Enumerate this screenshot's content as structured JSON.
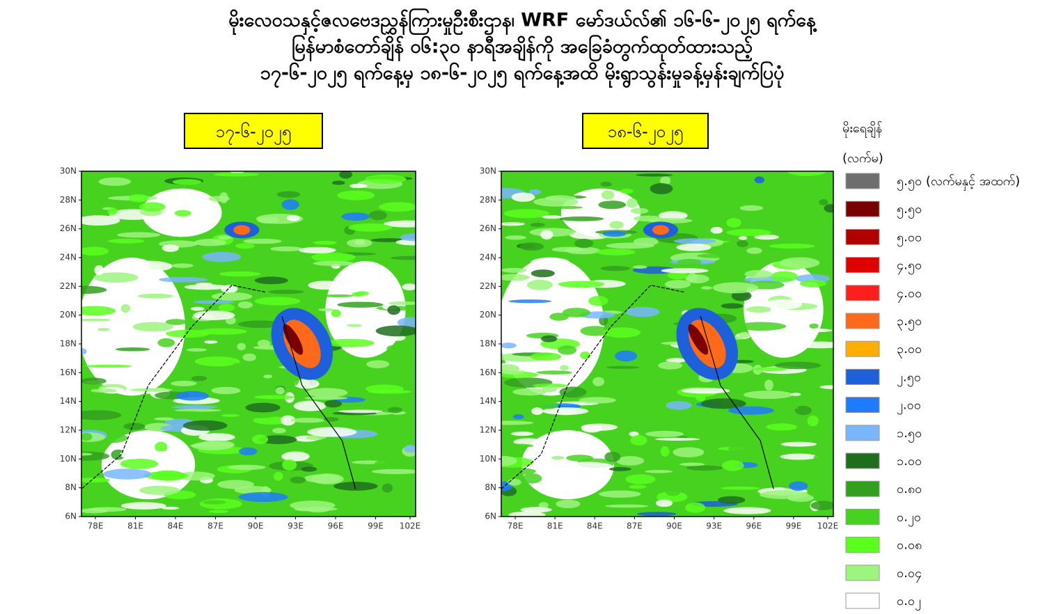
{
  "title": [
    "မိုးလေဝသနှင့်ဇလဗေဒညွှန်ကြားမှုဦးစီးဌာန၊ WRF မော်ဒယ်လ်၏ ၁၆-၆-၂၀၂၅ ရက်နေ့",
    "မြန်မာစံတော်ချိန် ၀၆:၃၀ နာရီအချိန်ကို အခြေခံတွက်ထုတ်ထားသည့်",
    "၁၇-၆-၂၀၂၅ ရက်နေ့မှ ၁၈-၆-၂၀၂၅ ရက်နေ့အထိ မိုးရွာသွန်းမှုခန့်မှန်းချက်ပြပုံ"
  ],
  "panels": [
    {
      "date": "၁၇-၆-၂၀၂၅"
    },
    {
      "date": "၁၈-၆-၂၀၂၅"
    }
  ],
  "y_ticks": [
    "30N",
    "28N",
    "26N",
    "24N",
    "22N",
    "20N",
    "18N",
    "16N",
    "14N",
    "12N",
    "10N",
    "8N",
    "6N"
  ],
  "x_ticks": [
    "78E",
    "81E",
    "84E",
    "87E",
    "90E",
    "93E",
    "96E",
    "99E",
    "102E"
  ],
  "legend": {
    "title": "မိုးရေချိန်",
    "unit": "(လက်မ)",
    "items": [
      {
        "label": "၅.၅၀ (လက်မနှင့် အထက်)",
        "color": "#6e6e6e"
      },
      {
        "label": "၅.၅၀",
        "color": "#7a0000"
      },
      {
        "label": "၅.၀၀",
        "color": "#b00000"
      },
      {
        "label": "၄.၅၀",
        "color": "#e00000"
      },
      {
        "label": "၄.၀၀",
        "color": "#ff1e1e"
      },
      {
        "label": "၃.၅၀",
        "color": "#ff6a1a"
      },
      {
        "label": "၃.၀၀",
        "color": "#ffad00"
      },
      {
        "label": "၂.၅၀",
        "color": "#1e5fdc"
      },
      {
        "label": "၂.၀၀",
        "color": "#1e7bff"
      },
      {
        "label": "၁.၅၀",
        "color": "#7ab6ff"
      },
      {
        "label": "၁.၀၀",
        "color": "#1e6e1e"
      },
      {
        "label": "၀.၈၀",
        "color": "#32a01e"
      },
      {
        "label": "၀.၂၀",
        "color": "#46d21e"
      },
      {
        "label": "၀.၀၈",
        "color": "#5aff1e"
      },
      {
        "label": "၀.၀၄",
        "color": "#9ef57e"
      },
      {
        "label": "၀.၀၂",
        "color": "#ffffff"
      }
    ]
  }
}
